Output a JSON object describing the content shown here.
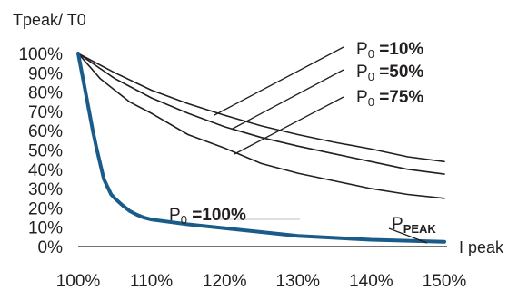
{
  "chart_data": {
    "type": "line",
    "ylabel": "Tpeak/ T0",
    "xlabel": "I peak",
    "xlim": [
      100,
      150
    ],
    "ylim": [
      0,
      100
    ],
    "x_ticks": [
      "100%",
      "110%",
      "120%",
      "130%",
      "140%",
      "150%"
    ],
    "y_ticks": [
      "0%",
      "10%",
      "20%",
      "30%",
      "40%",
      "50%",
      "60%",
      "70%",
      "80%",
      "90%",
      "100%"
    ],
    "grid": false,
    "highlight_color": "#1a5b8a",
    "line_color": "#231f20",
    "series": [
      {
        "name": "P0 =10%",
        "points": [
          [
            100,
            100
          ],
          [
            105,
            90
          ],
          [
            110,
            81
          ],
          [
            115,
            74
          ],
          [
            120,
            68
          ],
          [
            125,
            62.5
          ],
          [
            130,
            58
          ],
          [
            135,
            54
          ],
          [
            140,
            50.5
          ],
          [
            145,
            46.5
          ],
          [
            150,
            44
          ]
        ]
      },
      {
        "name": "P0 =50%",
        "points": [
          [
            100,
            100
          ],
          [
            105,
            87
          ],
          [
            110,
            77
          ],
          [
            115,
            69
          ],
          [
            120,
            62
          ],
          [
            125,
            56.5
          ],
          [
            130,
            52
          ],
          [
            135,
            48
          ],
          [
            140,
            44
          ],
          [
            145,
            40
          ],
          [
            150,
            37.5
          ]
        ]
      },
      {
        "name": "P0 =75%",
        "points": [
          [
            100,
            100
          ],
          [
            103,
            87
          ],
          [
            107,
            75
          ],
          [
            110,
            69
          ],
          [
            115,
            58
          ],
          [
            120,
            51
          ],
          [
            125,
            43
          ],
          [
            130,
            38
          ],
          [
            135,
            34
          ],
          [
            140,
            30
          ],
          [
            145,
            27
          ],
          [
            150,
            25
          ]
        ]
      },
      {
        "name": "P0 =100%",
        "points": [
          [
            100,
            100
          ],
          [
            101,
            80
          ],
          [
            102,
            60
          ],
          [
            102.5,
            51
          ],
          [
            103,
            43
          ],
          [
            103.5,
            35
          ],
          [
            104,
            31
          ],
          [
            104.5,
            27
          ],
          [
            105,
            25
          ],
          [
            106,
            21.5
          ],
          [
            107,
            18.5
          ],
          [
            108,
            16.5
          ],
          [
            109,
            15
          ],
          [
            110,
            14
          ],
          [
            115,
            11.5
          ],
          [
            120,
            9.5
          ],
          [
            125,
            7.5
          ],
          [
            130,
            5.5
          ],
          [
            135,
            4.5
          ],
          [
            140,
            3.5
          ],
          [
            145,
            3
          ],
          [
            150,
            2.5
          ]
        ]
      }
    ],
    "labels": {
      "p10": {
        "base": "P",
        "sub": "0",
        "text": " =10%"
      },
      "p50": {
        "base": "P",
        "sub": "0",
        "text": " =50%"
      },
      "p75": {
        "base": "P",
        "sub": "0",
        "text": " =75%"
      },
      "p100": {
        "base": "P",
        "sub": "0",
        "text": " =100%"
      },
      "ppeak": {
        "base": "P",
        "sub": "PEAK"
      }
    }
  }
}
